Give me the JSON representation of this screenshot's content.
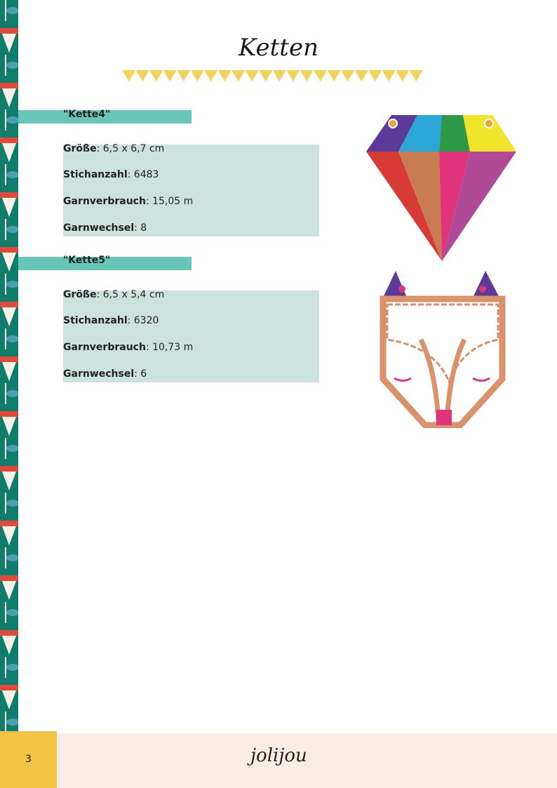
{
  "page": {
    "title": "Ketten",
    "page_number": "3",
    "logo": "jolijou"
  },
  "items": [
    {
      "name": "\"Kette4\"",
      "size_label": "Größe",
      "size": ": 6,5 x 6,7 cm",
      "stitches_label": "Stichanzahl",
      "stitches": ":  6483",
      "thread_label": "Garnverbrauch",
      "thread": ": 15,05 m",
      "changes_label": "Garnwechsel",
      "changes": ": 8"
    },
    {
      "name": "\"Kette5\"",
      "size_label": "Größe",
      "size": ": 6,5 x 5,4 cm",
      "stitches_label": "Stichanzahl",
      "stitches": ":  6320",
      "thread_label": "Garnverbrauch",
      "thread": ": 10,73 m",
      "changes_label": "Garnwechsel",
      "changes": ": 6"
    }
  ],
  "colors": {
    "teal": "#67c6b9",
    "mint": "#cce3dd",
    "yellow": "#f1c244",
    "footer": "#f8ede6"
  }
}
